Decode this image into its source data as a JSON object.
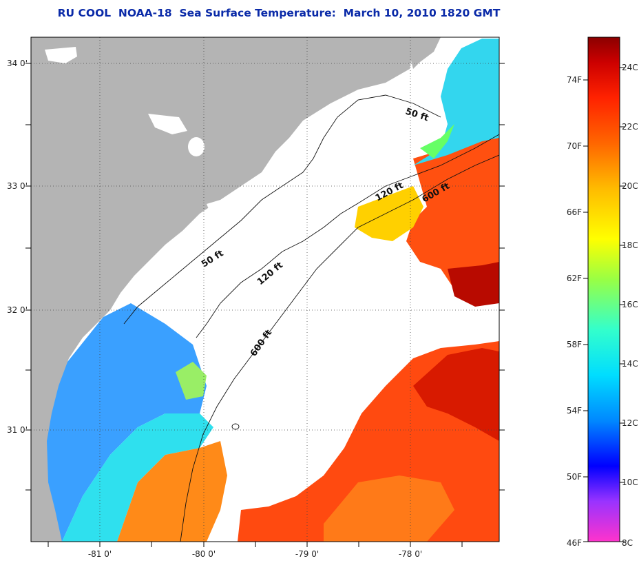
{
  "title": "RU COOL  NOAA-18  Sea Surface Temperature:  March 10, 2010 1820 GMT",
  "map": {
    "lat_ticks": [
      "34 0'",
      "33 0'",
      "32 0'",
      "31 0'"
    ],
    "lon_ticks": [
      "-81 0'",
      "-80 0'",
      "-79 0'",
      "-78 0'"
    ],
    "depth_labels": [
      {
        "id": "depth-50ft-north",
        "text": "50 ft"
      },
      {
        "id": "depth-120ft-north",
        "text": "120 ft"
      },
      {
        "id": "depth-600ft-north",
        "text": "600 ft"
      },
      {
        "id": "depth-50ft-south",
        "text": "50 ft"
      },
      {
        "id": "depth-120ft-south",
        "text": "120 ft"
      },
      {
        "id": "depth-600ft-south",
        "text": "600 ft"
      }
    ],
    "colors": {
      "land": "#b4b4b4",
      "cloud": "#ffffff",
      "grid": "#333333"
    }
  },
  "colorbar": {
    "fahrenheit_labels": [
      "74F",
      "70F",
      "66F",
      "62F",
      "58F",
      "54F",
      "50F",
      "46F"
    ],
    "celsius_labels": [
      "24C",
      "22C",
      "20C",
      "18C",
      "16C",
      "14C",
      "12C",
      "10C",
      "8C"
    ],
    "colors": [
      "#ff33cc",
      "#9933ff",
      "#0000ff",
      "#0088ff",
      "#00ddff",
      "#33ffcc",
      "#99ff44",
      "#ffff00",
      "#ffbb00",
      "#ff6600",
      "#ff2200",
      "#cc0000",
      "#8b0000"
    ]
  }
}
